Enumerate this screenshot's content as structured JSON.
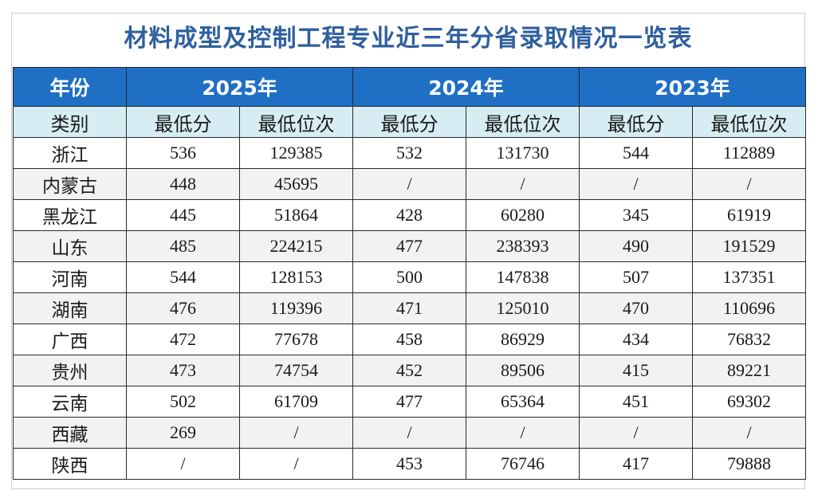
{
  "title": "材料成型及控制工程专业近三年分省录取情况一览表",
  "header": {
    "year_label": "年份",
    "category_label": "类别",
    "years": [
      "2025年",
      "2024年",
      "2023年"
    ],
    "sub_labels": [
      "最低分",
      "最低位次"
    ]
  },
  "rows": [
    {
      "province": "浙江",
      "cells": [
        "536",
        "129385",
        "532",
        "131730",
        "544",
        "112889"
      ]
    },
    {
      "province": "内蒙古",
      "cells": [
        "448",
        "45695",
        "/",
        "/",
        "/",
        "/"
      ]
    },
    {
      "province": "黑龙江",
      "cells": [
        "445",
        "51864",
        "428",
        "60280",
        "345",
        "61919"
      ]
    },
    {
      "province": "山东",
      "cells": [
        "485",
        "224215",
        "477",
        "238393",
        "490",
        "191529"
      ]
    },
    {
      "province": "河南",
      "cells": [
        "544",
        "128153",
        "500",
        "147838",
        "507",
        "137351"
      ]
    },
    {
      "province": "湖南",
      "cells": [
        "476",
        "119396",
        "471",
        "125010",
        "470",
        "110696"
      ]
    },
    {
      "province": "广西",
      "cells": [
        "472",
        "77678",
        "458",
        "86929",
        "434",
        "76832"
      ]
    },
    {
      "province": "贵州",
      "cells": [
        "473",
        "74754",
        "452",
        "89506",
        "415",
        "89221"
      ]
    },
    {
      "province": "云南",
      "cells": [
        "502",
        "61709",
        "477",
        "65364",
        "451",
        "69302"
      ]
    },
    {
      "province": "西藏",
      "cells": [
        "269",
        "/",
        "/",
        "/",
        "/",
        "/"
      ]
    },
    {
      "province": "陕西",
      "cells": [
        "/",
        "/",
        "453",
        "76746",
        "417",
        "79888"
      ]
    }
  ],
  "colors": {
    "title_text": "#2e5f9e",
    "header_bg": "#1f6fc5",
    "subheader_bg": "#d6eef3",
    "zebra_bg": "#f2f2f2"
  }
}
